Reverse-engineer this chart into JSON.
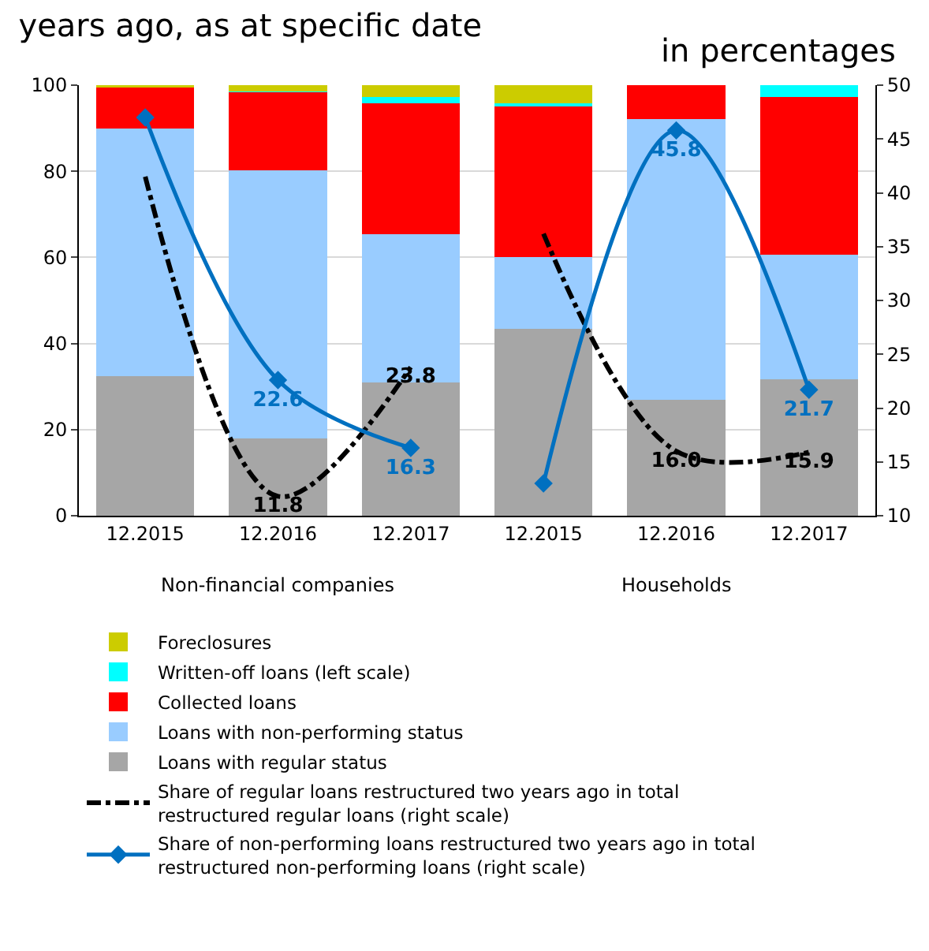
{
  "chart_data": {
    "type": "bar",
    "title": "years ago, as at specific date",
    "subtitle": "in percentages",
    "categories": [
      "12.2015",
      "12.2016",
      "12.2017",
      "12.2015",
      "12.2016",
      "12.2017"
    ],
    "annotations": [
      "Non-financial companies",
      "Households"
    ],
    "stacked": true,
    "series": [
      {
        "name": "Loans with regular status",
        "color": "#a6a6a6",
        "values": [
          32.5,
          18,
          31,
          43.5,
          27,
          31.7
        ]
      },
      {
        "name": "Loans with non-performing status",
        "color": "#99ccff",
        "values": [
          57.5,
          62.3,
          34.3,
          16.5,
          65.2,
          28.9
        ]
      },
      {
        "name": "Collected loans",
        "color": "#ff0000",
        "values": [
          9.5,
          18,
          30.5,
          35,
          7.8,
          36.6
        ]
      },
      {
        "name": "Written-off loans (left scale)",
        "color": "#00ffff",
        "values": [
          0,
          0.2,
          1.4,
          0.8,
          0,
          2.8
        ]
      },
      {
        "name": "Foreclosures",
        "color": "#cccc00",
        "values": [
          0.5,
          1.5,
          2.8,
          4.2,
          0,
          0
        ]
      },
      {
        "name": "Share of regular loans restructured two years ago in total restructured regular loans (right scale)",
        "type": "line",
        "axis": "y2",
        "color": "#000000",
        "line_style": "dashdot",
        "marker": "none",
        "values": [
          41.5,
          11.8,
          23.8,
          36.2,
          16.0,
          15.9
        ],
        "value_labels": [
          null,
          "11.8",
          "23.8",
          null,
          "16.0",
          "15.9"
        ]
      },
      {
        "name": "Share of non-performing loans restructured two years ago in total restructured non-performing loans (right scale)",
        "type": "line",
        "axis": "y2",
        "color": "#0070c0",
        "line_style": "solid",
        "marker": "diamond",
        "values": [
          47.0,
          22.6,
          16.3,
          13.0,
          45.8,
          21.7
        ],
        "value_labels": [
          null,
          "22.6",
          "16.3",
          null,
          "45.8",
          "21.7"
        ]
      }
    ],
    "ylim": [
      0,
      100
    ],
    "yticks": [
      0,
      20,
      40,
      60,
      80,
      100
    ],
    "y2lim": [
      10,
      50
    ],
    "y2ticks": [
      10,
      15,
      20,
      25,
      30,
      35,
      40,
      45,
      50
    ],
    "grid": "y",
    "legend": "bottom"
  }
}
